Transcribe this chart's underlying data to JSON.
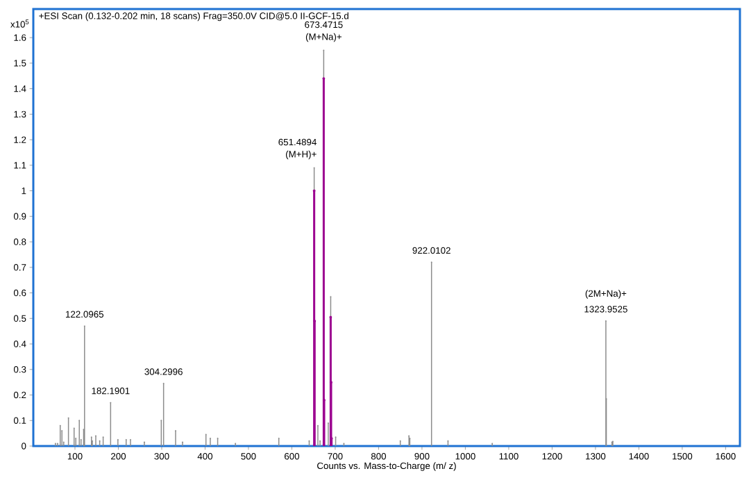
{
  "chart_data": {
    "type": "lollipop",
    "title": "+ESI Scan (0.132-0.202 min, 18 scans) Frag=350.0V CID@5.0 II-GCF-15.d",
    "xlabel": "Counts vs. Mass-to-Charge (m/ z)",
    "xlim": [
      4,
      1633
    ],
    "ylim": [
      0,
      1.712
    ],
    "xticks": [
      100,
      200,
      300,
      400,
      500,
      600,
      700,
      800,
      900,
      1000,
      1100,
      1200,
      1300,
      1400,
      1500,
      1600
    ],
    "yticks": [
      0,
      0.1,
      0.2,
      0.3,
      0.4,
      0.5,
      0.6,
      0.7,
      0.8,
      0.9,
      1,
      1.1,
      1.2,
      1.3,
      1.4,
      1.5,
      1.6
    ],
    "grid": false,
    "x": [
      55,
      60,
      66,
      70,
      74,
      85,
      98,
      102,
      110,
      114,
      120,
      122.0965,
      138,
      140,
      148,
      157,
      165,
      182.1901,
      199,
      218,
      228,
      260,
      299,
      304.2996,
      332,
      348,
      402,
      412,
      429,
      470,
      570,
      640,
      651.4894,
      651.5,
      652.5,
      660,
      665,
      673.4715,
      673.5,
      674.5,
      684,
      689.5,
      689.6,
      690.5,
      691.5,
      701,
      720,
      850,
      870,
      872,
      922.0102,
      960,
      1062,
      1323.9525,
      1325,
      1338,
      1340
    ],
    "series": [
      {
        "color": "#8c8c8c",
        "values": [
          0.01,
          0.01,
          0.08,
          0.06,
          0.015,
          0.11,
          0.07,
          0.03,
          0.1,
          0.025,
          0.065,
          0.47,
          0.035,
          0.02,
          0.04,
          0.02,
          0.035,
          0.17,
          0.025,
          0.025,
          0.025,
          0.015,
          0.1,
          0.245,
          0.06,
          0.015,
          0.045,
          0.03,
          0.03,
          0.01,
          0.03,
          0.02,
          1.09,
          null,
          null,
          0.08,
          0.02,
          1.55,
          null,
          null,
          0.09,
          null,
          0.585,
          null,
          null,
          0.035,
          0.01,
          0.02,
          0.04,
          0.03,
          0.72,
          0.02,
          0.01,
          0.49,
          0.185,
          0.015,
          0.018
        ]
      },
      {
        "color": "#9c0090",
        "values": [
          null,
          null,
          null,
          null,
          null,
          null,
          null,
          null,
          null,
          null,
          null,
          null,
          null,
          null,
          null,
          null,
          null,
          null,
          null,
          null,
          null,
          null,
          null,
          null,
          null,
          null,
          null,
          null,
          null,
          null,
          null,
          null,
          null,
          1.0,
          0.49,
          null,
          null,
          null,
          1.44,
          0.18,
          null,
          0.505,
          null,
          0.25,
          0.03,
          null,
          null,
          null,
          null,
          null,
          null,
          null,
          null,
          null,
          null,
          null,
          null
        ]
      }
    ],
    "annotations": [
      "x10$^{5}$",
      {
        "text": "673.4715",
        "x": 673.4715,
        "y": 1.55
      },
      {
        "text": "(M+Na)+",
        "x": 673.4715,
        "y": 1.55
      },
      {
        "text": "651.4894",
        "x": 651.4894,
        "y": 1.09
      },
      {
        "text": "(M+H)+",
        "x": 651.4894,
        "y": 1.09
      },
      {
        "text": "122.0965",
        "x": 122.0965,
        "y": 0.47
      },
      {
        "text": "182.1901",
        "x": 182.1901,
        "y": 0.17
      },
      {
        "text": "304.2996",
        "x": 304.2996,
        "y": 0.245
      },
      {
        "text": "922.0102",
        "x": 922.0102,
        "y": 0.72
      },
      {
        "text": "(2M+Na)+",
        "x": 1323.9525,
        "y": 0.49
      },
      {
        "text": "1323.9525",
        "x": 1323.9525,
        "y": 0.49
      }
    ]
  }
}
